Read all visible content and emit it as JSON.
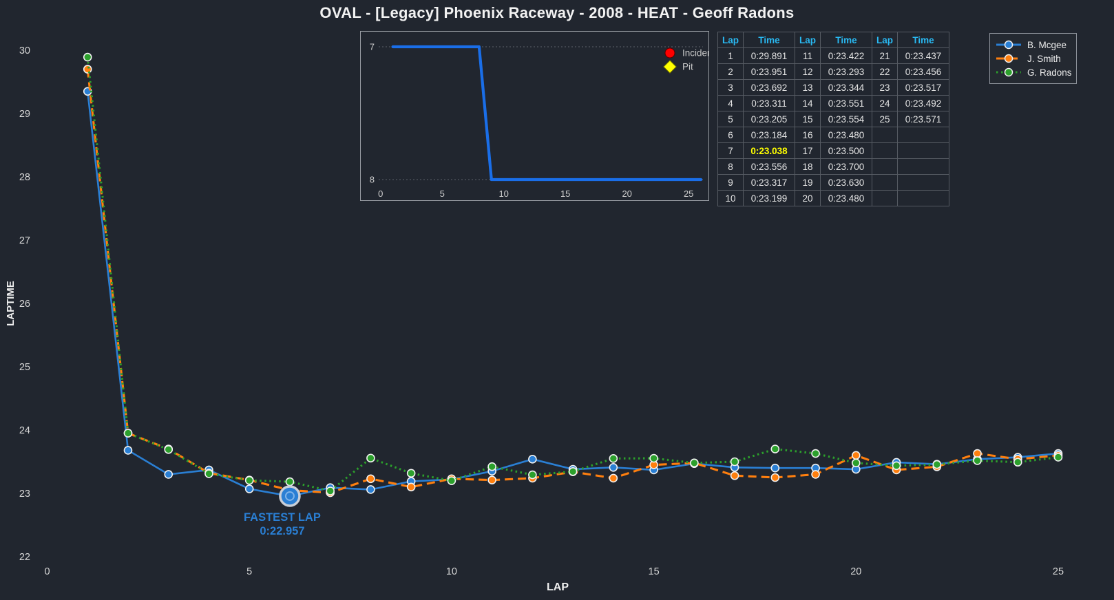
{
  "title": "OVAL - [Legacy] Phoenix Raceway - 2008 - HEAT - Geoff Radons",
  "colors": {
    "background": "#21262f",
    "blue": "#2a7fd4",
    "orange": "#ff7f0e",
    "green": "#2ca02c",
    "inset_line": "#1a6ee8",
    "incident_red": "#ff0000",
    "pit_yellow": "#ffff00",
    "table_header_text": "#29b9f2",
    "highlight_yellow": "#ffff00",
    "tick_text": "#d8d8d8"
  },
  "chart_data": [
    {
      "type": "line",
      "name": "laptime-chart",
      "title": "",
      "xlabel": "LAP",
      "ylabel": "LAPTIME",
      "xlim": [
        0,
        26
      ],
      "ylim": [
        21.9,
        30.3
      ],
      "xticks": [
        0,
        5,
        10,
        15,
        20,
        25
      ],
      "yticks": [
        22,
        23,
        24,
        25,
        26,
        27,
        28,
        29,
        30
      ],
      "grid": false,
      "legend_position": "top-right",
      "x": [
        1,
        2,
        3,
        4,
        5,
        6,
        7,
        8,
        9,
        10,
        11,
        12,
        13,
        14,
        15,
        16,
        17,
        18,
        19,
        20,
        21,
        22,
        23,
        24,
        25
      ],
      "series": [
        {
          "name": "B. Mcgee",
          "color": "#2a7fd4",
          "line_style": "solid",
          "values": [
            29.35,
            23.68,
            23.3,
            23.37,
            23.07,
            22.957,
            23.09,
            23.06,
            23.19,
            23.22,
            23.35,
            23.54,
            23.38,
            23.41,
            23.37,
            23.47,
            23.41,
            23.4,
            23.4,
            23.38,
            23.49,
            23.46,
            23.54,
            23.57,
            23.63
          ]
        },
        {
          "name": "J. Smith",
          "color": "#ff7f0e",
          "line_style": "dashed",
          "values": [
            29.7,
            23.95,
            23.7,
            23.32,
            23.21,
            23.05,
            23.01,
            23.23,
            23.1,
            23.23,
            23.21,
            23.24,
            23.34,
            23.24,
            23.45,
            23.48,
            23.28,
            23.25,
            23.3,
            23.6,
            23.37,
            23.42,
            23.63,
            23.54,
            23.6
          ]
        },
        {
          "name": "G. Radons",
          "color": "#2ca02c",
          "line_style": "dotted",
          "values": [
            29.891,
            23.951,
            23.692,
            23.311,
            23.205,
            23.184,
            23.038,
            23.556,
            23.317,
            23.199,
            23.422,
            23.293,
            23.344,
            23.551,
            23.554,
            23.48,
            23.5,
            23.7,
            23.63,
            23.48,
            23.437,
            23.456,
            23.517,
            23.492,
            23.571
          ]
        }
      ],
      "annotations": [
        {
          "line1": "FASTEST LAP",
          "line2": "0:22.957",
          "x": 6,
          "y": 22.957,
          "series": "B. Mcgee"
        }
      ]
    },
    {
      "type": "line",
      "name": "position-inset-chart",
      "ylabel": "",
      "xlabel": "",
      "y_inverted": true,
      "yticks": [
        7,
        8
      ],
      "xticks": [
        0,
        5,
        10,
        15,
        20,
        25
      ],
      "xlim": [
        0,
        26.3
      ],
      "series": [
        {
          "name": "Position",
          "color": "#1a6ee8",
          "x": [
            1,
            8,
            9,
            26
          ],
          "values": [
            7,
            7,
            8,
            8
          ]
        }
      ],
      "legend": [
        {
          "label": "Incident",
          "marker": "circle",
          "color": "#ff0000"
        },
        {
          "label": "Pit",
          "marker": "diamond",
          "color": "#ffff00"
        }
      ]
    }
  ],
  "legend": {
    "items": [
      {
        "label": "B. Mcgee",
        "color": "#2a7fd4",
        "line_style": "solid"
      },
      {
        "label": "J. Smith",
        "color": "#ff7f0e",
        "line_style": "dashed"
      },
      {
        "label": "G. Radons",
        "color": "#2ca02c",
        "line_style": "dotted"
      }
    ]
  },
  "table": {
    "headers": [
      "Lap",
      "Time",
      "Lap",
      "Time",
      "Lap",
      "Time"
    ],
    "rows": [
      [
        "1",
        "0:29.891",
        "11",
        "0:23.422",
        "21",
        "0:23.437"
      ],
      [
        "2",
        "0:23.951",
        "12",
        "0:23.293",
        "22",
        "0:23.456"
      ],
      [
        "3",
        "0:23.692",
        "13",
        "0:23.344",
        "23",
        "0:23.517"
      ],
      [
        "4",
        "0:23.311",
        "14",
        "0:23.551",
        "24",
        "0:23.492"
      ],
      [
        "5",
        "0:23.205",
        "15",
        "0:23.554",
        "25",
        "0:23.571"
      ],
      [
        "6",
        "0:23.184",
        "16",
        "0:23.480",
        "",
        ""
      ],
      [
        "7",
        "0:23.038",
        "17",
        "0:23.500",
        "",
        ""
      ],
      [
        "8",
        "0:23.556",
        "18",
        "0:23.700",
        "",
        ""
      ],
      [
        "9",
        "0:23.317",
        "19",
        "0:23.630",
        "",
        ""
      ],
      [
        "10",
        "0:23.199",
        "20",
        "0:23.480",
        "",
        ""
      ]
    ],
    "highlight": {
      "row_index": 6,
      "col_index": 1
    }
  }
}
